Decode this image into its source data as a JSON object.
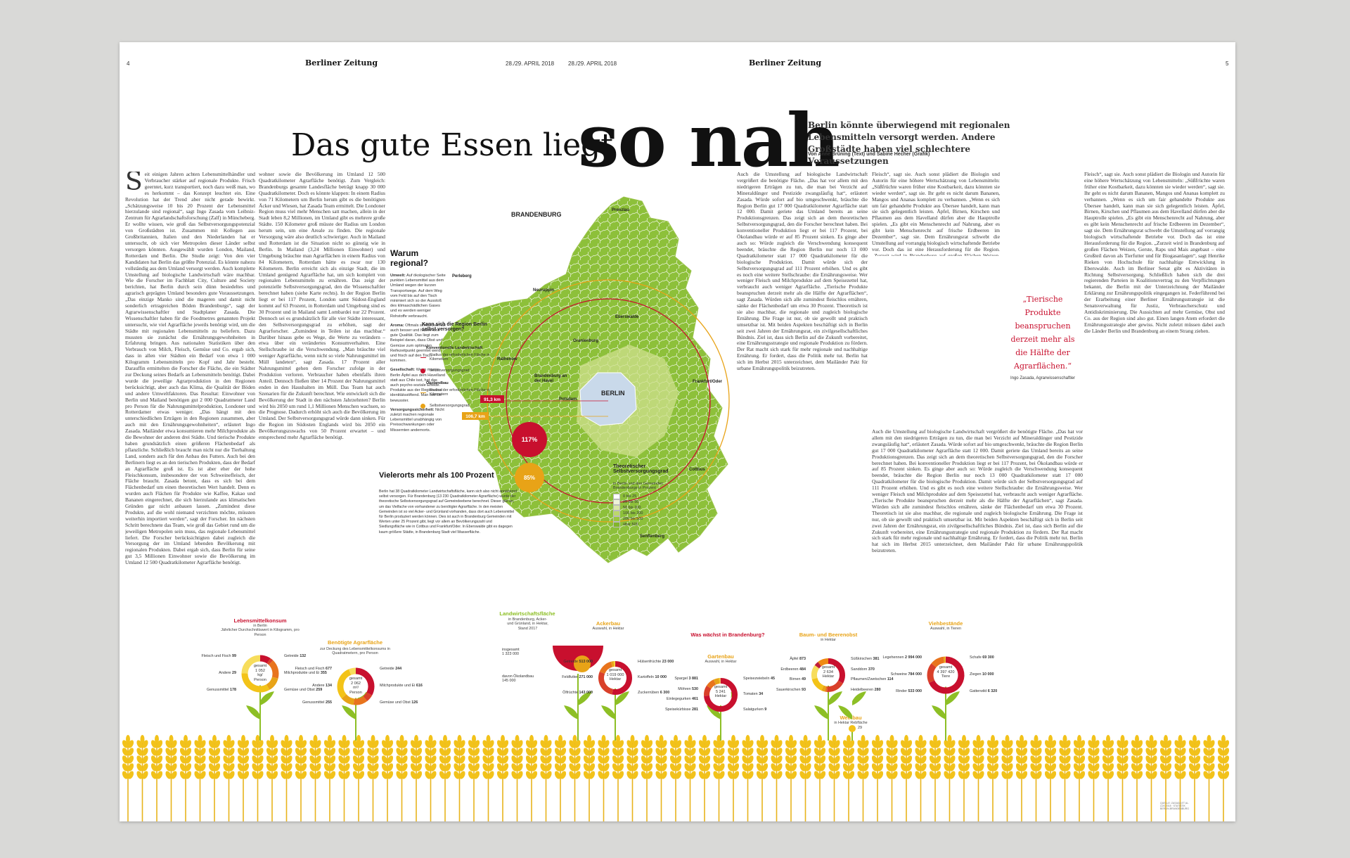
{
  "header": {
    "page_left": "4",
    "page_right": "5",
    "date_left": "28./29. APRIL 2018",
    "date_right": "28./29. APRIL 2018",
    "brand": "Berliner Zeitung"
  },
  "headline": {
    "small": "Das gute Essen liegt",
    "big": "so nah",
    "subtitle": "Berlin könnte überwiegend mit regionalen Lebensmitteln versorgt werden. Andere Großstädte haben viel schlechtere Voraussetzungen",
    "byline": "Von Anne Brüning (Text) und Sabine Hecher (Grafik)"
  },
  "body": {
    "dropcap": "S",
    "col1": "eit einigen Jahren achten Lebensmittelhändler und Verbraucher stärker auf regionale Produkte. Frisch geerntet, kurz transportiert, noch dazu weiß man, wo es herkommt – das Konzept leuchtet ein. Eine Revolution hat der Trend aber nicht gerade bewirkt. „Schätzungsweise 10 bis 20 Prozent der Lebensmittel hierzulande sind regional“, sagt Ingo Zasada vom Leibniz-Zentrum für Agrarlandschaftsforschung (Zalf) in Müncheberg. Er wollte wissen, wie groß das Selbstversorgungspotenzial von Großstädten ist. Zusammen mit Kollegen aus Großbritannien, Italien und den Niederlanden hat er untersucht, ob sich vier Metropolen dieser Länder selbst versorgen könnten. Ausgewählt wurden London, Mailand, Rotterdam und Berlin. Die Studie zeigt: Von den vier Kandidaten hat Berlin das größte Potenzial. Es könnte nahezu vollständig aus dem Umland versorgt werden. Auch komplette Umstellung auf biologische Landwirtschaft wäre machbar. Wie die Forscher im Fachblatt City, Culture and Society berichten, hat Berlin durch sein dünn besiedeltes und agrarisch geprägtes Umland besonders gute Voraussetzungen. „Das einzige Manko sind die mageren und damit nicht sonderlich ertragreichen Böden Brandenburgs“, sagt der Agrarwissenschaftler und Stadtplaner Zasada. Die Wissenschaftler haben für die Foodmetres genannten Projekt untersucht, wie viel Agrarfläche jeweils benötigt wird, um die Städte mit regionalen Lebensmitteln zu beliefern. Dazu mussten sie zunächst die Ernährungsgewohnheiten in Erfahrung bringen. Aus nationalen Statistiken über den Verbrauch von Milch, Fleisch, Gemüse und Co. ergab sich, dass in allen vier Städten ein Bedarf von etwa 1 000 Kilogramm Lebensmitteln pro Kopf und Jahr besteht. Darauffin ermittelten die Forscher die Fläche, die ein Städter zur Deckung seines Bedarfs an Lebensmitteln benötigt. Dabei wurde die jeweilige Agrarproduktion in den Regionen berücksichtigt, aber auch das Klima, die Qualität der Böden und andere Umweltfaktoren. Das Resultat: Einwohner von Berlin und Mailand benötigen gut 2 000 Quadratmeter Land pro Person für die Nahrungsmittelproduktion, Londoner und Rotterdamer etwas weniger. „Das hängt mit den unterschiedlichen Erträgen in den Regionen zusammen, aber auch mit den Ernährungsgewohnheiten“, erläutert Ingo Zasada. Mailänder etwa konsumieren mehr Milchprodukte als die Bewohner der anderen drei Städte. Und tierische Produkte haben grundsätzlich einen größeren Flächenbedarf als pflanzliche. Schließlich braucht man nicht nur die Tierhaltung Land, sondern auch für den Anbau des Futters. Auch bei den Berlinern liegt es an den tierischen Produkten, dass der Bedarf an Agrarfläche groß ist. Es ist aber eher der hohe Fleischkonsum, insbesondere der von Schweinefleisch, der Fläche braucht. Zasada betont, dass es sich bei dem Flächenbedarf um einen theoretischen Wert handelt. Denn es wurden auch Flächen für Produkte wie Kaffee, Kakao und Bananen eingerechnet, die sich hierzulande aus klimatischen Gründen gar nicht anbauen lassen. „Zumindest diese Produkte, auf die wohl niemand verzichten möchte, müssten weiterhin importiert werden“, sagt der Forscher. Im nächsten Schritt berechnete das Team, wie groß das Gebiet rund um die jeweiligen Metropolen sein muss, das regionale Lebensmittel liefert. Die Forscher berücksichtigten dabei zugleich die Versorgung der im Umland lebenden Bevölkerung mit regionalen Produkten. Dabei ergab sich, dass Berlin für seine gut 3,5 Millionen Einwohner sowie die Bevölkerung im Umland 12 500 Quadratkilometer Agrarfläche benötigt.",
    "col2": "wohner sowie die Bevölkerung im Umland 12 500 Quadratkilometer Agrarfläche benötigt. Zum Vergleich: Brandenburgs gesamte Landesfläche beträgt knapp 30 000 Quadratkilometer. Doch es könnte klappen: In einem Radius von 71 Kilometern um Berlin herum gibt es die benötigten Äcker und Wiesen, hat Zasada Team ermittelt. Die Londoner Region muss viel mehr Menschen satt machen, allein in der Stadt leben 8,2 Millionen, im Umland gibt es mehrere große Städte. 150 Kilometer groß müsste der Radius um London herum sein, um eine Areale zu finden. Die regionale Versorgung wäre also deutlich schwieriger. Auch in Mailand und Rotterdam ist die Situation nicht so günstig wie in Berlin. In Mailand (3,24 Millionen Einwohner) und Umgebung bräuchte man Agrarflächen in einem Radius von 84 Kilometern, Rotterdam hätte es zwar nur 130 Kilometern. Berlin erreicht sich als einzige Stadt, die im Umland genügend Agrarfläche hat, um sich komplett von regionalen Lebensmitteln zu ernähren. Das zeigt der potenzielle Selbstversorgungsgrad, den die Wissenschaftler berechnet haben (siehe Karte rechts). In der Region Berlin liegt er bei 117 Prozent, London samt Südost-England kommt auf 63 Prozent, in Rotterdam und Umgebung sind es 30 Prozent und in Mailand samt Lombardei nur 22 Prozent. Dennoch sei es grundsätzlich für alle vier Städte interessant, den Selbstversorgungsgrad zu erhöhen, sagt der Agrarforscher. „Zumindest in Teilen ist das machbar.“ Darüber hinaus gebe es Wege, die Werte zu verändern – etwa über ein verändertes Konsumverhalten. Eine Stellschraube ist die Verschwendung. „Man bräuchte viel weniger Agrarfläche, wenn nicht so viele Nahrungsmittel im Müll landeten“, sagt Zasada. 17 Prozent aller Nahrungsmittel gehen dem Forscher zufolge in der Produktion verloren. Verbraucher haben ebenfalls ihren Anteil. Dennoch fließen über 14 Prozent der Nahrungsmittel enden in den Haushalten im Müll. Das Team hat auch Szenarien für die Zukunft berechnet. Wie entwickelt sich die Bevölkerung der Stadt in den nächsten Jahrzehnten? Berlin wird bis 2050 um rund 1,1 Millionen Menschen wachsen, so die Prognose. Dadurch erhöht sich auch die Bevölkerung im Umland. Der Selbstversorgungsgrad würde dann sinken. Für die Region im Südosten Englands wird bis 2050 ein Bevölkerungszuwachs von 50 Prozent erwartet – und entsprechend mehr Agrarfläche benötigt.",
    "col3": "Auch die Umstellung auf biologische Landwirtschaft vergrößert die benötigte Fläche. „Das hat vor allem mit den niedrigeren Erträgen zu tun, die man bei Verzicht auf Mineraldünger und Pestizide zwangsläufig hat“, erläutert Zasada. Würde sofort auf bio umgeschwenkt, bräuchte die Region Berlin gut 17 000 Quadratkilometer Agrarfläche statt 12 000. Damit geriete das Umland bereits an seine Produktionsgrenzen. Das zeigt sich an dem theoretischen Selbstversorgungsgrad, den die Forscher berechnet haben. Bei konventioneller Produktion liegt er bei 117 Prozent, bei Ökolandbau würde er auf 85 Prozent sinken. Es ginge aber auch so: Würde zugleich die Verschwendung konsequent beendet, bräuchte die Region Berlin nur noch 13 000 Quadratkilometer statt 17 000 Quadratkilometer für die biologische Produktion. Damit würde sich der Selbstversorgungsgrad auf 111 Prozent erhöhen. Und es gibt es noch eine weitere Stellschraube: die Ernährungsweise. Wer weniger Fleisch und Milchprodukte auf dem Speisezettel hat, verbraucht auch weniger Agrarfläche. „Tierische Produkte beanspruchen derzeit mehr als die Hälfte der Agrarflächen“, sagt Zasada. Würden sich alle zumindest fleischlos ernähren, sänke der Flächenbedarf um etwa 30 Prozent. Theoretisch ist sie also machbar, die regionale und zugleich biologische Ernährung. Die Frage ist nur, ob sie gewollt und praktisch umsetzbar ist. Mit beiden Aspekten beschäftigt sich in Berlin seit zwei Jahren der Ernährungsrat, ein zivilgesellschaftliches Bündnis. Ziel ist, dass sich Berlin auf die Zukunft vorbereitet, eine Ernährungsstrategie und regionale Produktion zu fördern. Der Rat macht sich stark für mehr regionale und nachhaltige Ernährung. Er fordert, dass die Politik mehr tut. Berlin hat sich im Herbst 2015 unterzeichnet, dem Mailänder Pakt für urbane Ernährungspolitik beizutreten.",
    "col4": "Fleisch“, sagt sie. Auch sonst plädiert die Biologin und Autorin für eine höhere Wertschätzung von Lebensmitteln: „Süßfrüchte waren früher eine Kostbarkeit, dazu könnten sie wieder werden“, sagt sie. Ihr geht es nicht darum Bananen, Mangos und Ananas komplett zu verbannen. „Wenn es sich um fair gehandelte Produkte aus Übersee handelt, kann man sie sich gelegentlich leisten. Äpfel, Birnen, Kirschen und Pflaumen aus dem Havelland dürfen aber die Hauptrolle spielen. „Es gibt ein Menschenrecht auf Nahrung, aber es gibt kein Menschenrecht auf frische Erdbeeren im Dezember“, sagt sie. Dem Ernährungsrat schwebt die Umstellung auf vorrangig biologisch wirtschaftende Betriebe vor. Doch das ist eine Herausforderung für die Region. „Zurzeit wird in Brandenburg auf großen Flächen Weizen, Gerste, Raps und Mais angebaut – eine Großteil davon als Tierfutter und für Biogasanlagen“, sagt Henrike Rieken von Hochschule für nachhaltige Entwicklung in Eberswalde. Auch im Berliner Senat gibt es Aktivitäten in Richtung Selbstversorgung. Schließlich haben sich die drei regierenden Parteien in Koalitionsvertrag zu den Verpflichtungen bekannt, die Berlin mit der Unterzeichnung der Mailänder Erklärung zur Ernährungspolitik eingegangen ist. Federführend bei der Erarbeitung einer Berliner Ernährungsstrategie ist die Senatsverwaltung für Justiz, Verbraucherschutz und Antidiskriminierung. Die Aussichten auf mehr Gemüse, Obst und Co. aus der Region sind also gut. Einen langen Atem erfordert die Ernährungsstrategie aber gewiss. Nicht zuletzt müssen dabei auch die Länder Berlin und Brandenburg an einem Strang ziehen."
  },
  "sidebox": {
    "title": "Warum regional?",
    "items": [
      {
        "head": "Umwelt:",
        "text": "Auf ökologischer Seite punkten Lebensmittel aus dem Umland wegen der kurzen Transportwege. Auf dem Weg vom Feld bis auf den Tisch minimiert sich so der Ausstoß des klimaschädlichen Gases und es werden weniger Rohstoffe verbraucht."
      },
      {
        "head": "Aroma:",
        "text": "Oftmals schmecken sie auch besser und haben eine gute Qualität. Das liegt zum Beispiel daran, dass Obst und Gemüse zum optimalen Reifezeitpunkt geerntet werden und frisch auf den Tisch kommen."
      },
      {
        "head": "Gesellschaft:",
        "text": "Wenn man in Berlin Äpfel aus dem Havelland statt aus Chile isst, hat das auch psycho-soziale Effekte. Produkte aus der Region sind identitätsstiftend. Man isst sie bewusster."
      },
      {
        "head": "Versorgungssicherheit:",
        "text": "Nicht zuletzt machen regionale Lebensmittel unabhängig von Preisschwankungen oder Missernten andernorts."
      }
    ]
  },
  "quote": {
    "text": "„Tierische Produkte beanspruchen derzeit mehr als die Hälfte der Agrarflächen.“",
    "author": "Ingo Zasada, Agrarwissenschaftler"
  },
  "map": {
    "state_label": "BRANDENBURG",
    "city_label": "BERLIN",
    "places": [
      "Prenzlau",
      "Perleberg",
      "Neuruppin",
      "Eberswalde",
      "Oranienburg",
      "Rathenow",
      "Brandenburg an der Havel",
      "Potsdam",
      "Frankfurt/Oder",
      "Cottbus",
      "Senftenberg"
    ],
    "radius_conventional": "91,3 km",
    "radius_organic": "106,7 km",
    "legend": {
      "question": "Kann sich die Region Berlin selbst versorgen?",
      "conv_title": "Konventionelle Landwirtschaft",
      "conv_radius": "Radius der erforderlichen Fläche in Kilometern",
      "conv_grade": "Selbstversorgungsgrad",
      "eco_title": "Ökolandbau",
      "eco_radius": "Radius der erforderlichen Fläche in Kilometern",
      "eco_grade": "Selbstversorgungsgrad",
      "value_conv": "117%",
      "value_eco": "85%"
    },
    "scale_title": "Theoretischer Selbstversorgungsgrad",
    "scale_sub": "in Berlin und den Gemeinden Brandenburgs in Prozent",
    "scale_items": [
      "0 bis 25",
      "25 bis 50",
      "50 bis 100",
      "100 bis 200",
      "200 bis 500",
      "über 500"
    ],
    "scale_colors": [
      "#ffffff",
      "#eef2d8",
      "#d9e6a6",
      "#bcd86a",
      "#9cc83d",
      "#82b52b"
    ],
    "vieler_title": "Vielerorts mehr als 100 Prozent",
    "vieler_text": "Berlin hat 38 Quadratkilometer Landwirtschaftsfläche, kann sich also nicht annähernd selbst versorgen. Für Brandenburg (13 230 Quadratkilometer Agrarfläche) wurde der theoretische Selbstversorgungsgrad auf Gemeindeebene berechnet. Dieser gibt an, um das Vielfache von vorhandener zu benötigter Agrarfläche. In den meisten Gemeinden ist so viel Acker- und Grünland vorhanden, dass dort auch Lebensmittel für Berlin produziert werden können. Dies ist auch in Brandenburg Gemeinden mit Werten unter 25 Prozent gibt, liegt vor allem an Bevölkerungszahl und Siedlungsfläche wie in Cottbus und Frankfurt/Oder. In Eberswalde gibt es dagegen kaum größere Städte, in Brandenburg Stadt viel Wasserfläche."
  },
  "charts": {
    "c1": {
      "title": "Lebensmittelkonsum",
      "sub": "in Berlin\nJährlicher Durchschnittswert in Kilogramm, pro Person",
      "center": "gesamt\n1 052\nkg/\nPerson"
    },
    "c2": {
      "title": "Benötigte Agrarfläche",
      "sub": "zur Deckung des Lebensmittelkonsums in Quadratmetern, pro Person",
      "center": "gesamt\n2 062\nm²/\nPerson"
    },
    "c3": {
      "title": "Landwirtschaftsfläche",
      "sub": "in Brandenburg, Acker- und Grünland, in Hektar, Stand 2017",
      "total": "insgesamt\n1 323 000",
      "oeko": "davon Ökolandbau\n145 000"
    },
    "c4": {
      "title": "Ackerbau",
      "sub": "Auswahl, in Hektar",
      "center": "gesamt\n1 019 000\nHektar"
    },
    "c5_header": "Was wächst in Brandenburg?",
    "c5": {
      "title": "Gartenbau",
      "sub": "Auswahl, in Hektar",
      "center": "gesamt\n5 241\nHektar"
    },
    "c6": {
      "title": "Baum- und Beerenobst",
      "sub": "in Hektar",
      "center": "gesamt\n2 634\nHektar"
    },
    "c7": {
      "title": "Viehbestände",
      "sub": "Auswahl, in Tieren",
      "center": "gesamt\n4 397 420\nTiere"
    },
    "weinbau": {
      "title": "Weinbau",
      "sub": "in Hektar Rebfläche",
      "value": "29"
    },
    "labels": {
      "c1": [
        [
          "Fleisch und Fisch",
          "99"
        ],
        [
          "Andere",
          "29"
        ],
        [
          "Genussmittel",
          "178"
        ],
        [
          "Getreide",
          "132"
        ],
        [
          "Milchprodukte und Ei",
          "355"
        ],
        [
          "Gemüse und Obst",
          "259"
        ]
      ],
      "c2": [
        [
          "Fleisch und Fisch",
          "677"
        ],
        [
          "Andere",
          "134"
        ],
        [
          "Genussmittel",
          "255"
        ],
        [
          "Getreide",
          "244"
        ],
        [
          "Milchprodukte und Ei",
          "616"
        ],
        [
          "Gemüse und Obst",
          "126"
        ]
      ],
      "c4": [
        [
          "Getreide",
          "513 000"
        ],
        [
          "Feldfutter",
          "271 000"
        ],
        [
          "Ölfrüchte",
          "143 000"
        ],
        [
          "Hülsenfrüchte",
          "23 000"
        ],
        [
          "Kartoffeln",
          "10 000"
        ],
        [
          "Zuckerrüben",
          "6 300"
        ]
      ],
      "c5": [
        [
          "Spargel",
          "3 881"
        ],
        [
          "Möhren",
          "530"
        ],
        [
          "Einlegegurken",
          "461"
        ],
        [
          "Speisekürbisse",
          "281"
        ],
        [
          "Speisezwiebeln",
          "45"
        ],
        [
          "Tomaten",
          "34"
        ],
        [
          "Salatgurken",
          "9"
        ]
      ],
      "c6": [
        [
          "Äpfel",
          "873"
        ],
        [
          "Erdbeeren",
          "484"
        ],
        [
          "Birnen",
          "49"
        ],
        [
          "Sauerkirschen",
          "93"
        ],
        [
          "Süßkirschen",
          "381"
        ],
        [
          "Sanddorn",
          "370"
        ],
        [
          "Pflaumen/Zwetschen",
          "114"
        ],
        [
          "Heidelbeeren",
          "280"
        ]
      ],
      "c7": [
        [
          "Legehennen",
          "2 994 000"
        ],
        [
          "Schweine",
          "784 000"
        ],
        [
          "Rinder",
          "533 000"
        ],
        [
          "Schafe",
          "69 300"
        ],
        [
          "Ziegen",
          "10 000"
        ],
        [
          "Gatterwild",
          "6 320"
        ]
      ]
    }
  },
  "footer": "QUELLE: ZASADA ET AL.\nLDS 2018 · STATISTIK\nBERLIN-BRANDENBURG"
}
